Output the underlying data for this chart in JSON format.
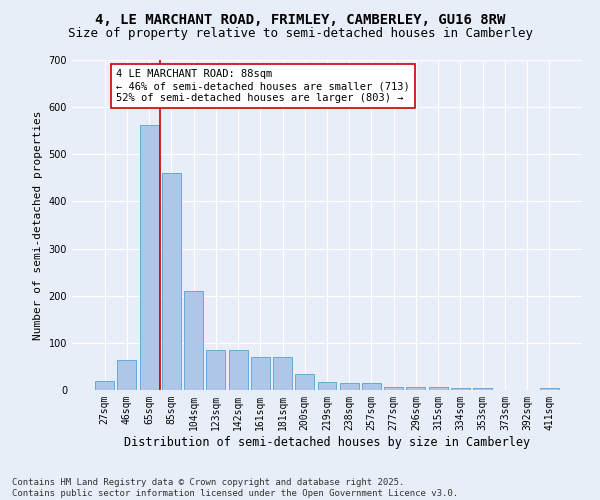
{
  "title1": "4, LE MARCHANT ROAD, FRIMLEY, CAMBERLEY, GU16 8RW",
  "title2": "Size of property relative to semi-detached houses in Camberley",
  "xlabel": "Distribution of semi-detached houses by size in Camberley",
  "ylabel": "Number of semi-detached properties",
  "categories": [
    "27sqm",
    "46sqm",
    "65sqm",
    "85sqm",
    "104sqm",
    "123sqm",
    "142sqm",
    "161sqm",
    "181sqm",
    "200sqm",
    "219sqm",
    "238sqm",
    "257sqm",
    "277sqm",
    "296sqm",
    "315sqm",
    "334sqm",
    "353sqm",
    "373sqm",
    "392sqm",
    "411sqm"
  ],
  "values": [
    20,
    63,
    563,
    460,
    210,
    85,
    85,
    70,
    70,
    33,
    17,
    15,
    15,
    7,
    7,
    7,
    5,
    5,
    0,
    0,
    5
  ],
  "bar_color": "#aec6e8",
  "bar_edge_color": "#5a9fd4",
  "vline_color": "#cc0000",
  "annotation_text": "4 LE MARCHANT ROAD: 88sqm\n← 46% of semi-detached houses are smaller (713)\n52% of semi-detached houses are larger (803) →",
  "annotation_box_color": "#ffffff",
  "annotation_box_edge": "#cc0000",
  "ylim": [
    0,
    700
  ],
  "yticks": [
    0,
    100,
    200,
    300,
    400,
    500,
    600,
    700
  ],
  "bg_color": "#e8eef8",
  "plot_bg_color": "#e8eef8",
  "footer_text": "Contains HM Land Registry data © Crown copyright and database right 2025.\nContains public sector information licensed under the Open Government Licence v3.0.",
  "title1_fontsize": 10,
  "title2_fontsize": 9,
  "xlabel_fontsize": 8.5,
  "ylabel_fontsize": 8,
  "tick_fontsize": 7,
  "annotation_fontsize": 7.5,
  "footer_fontsize": 6.5
}
